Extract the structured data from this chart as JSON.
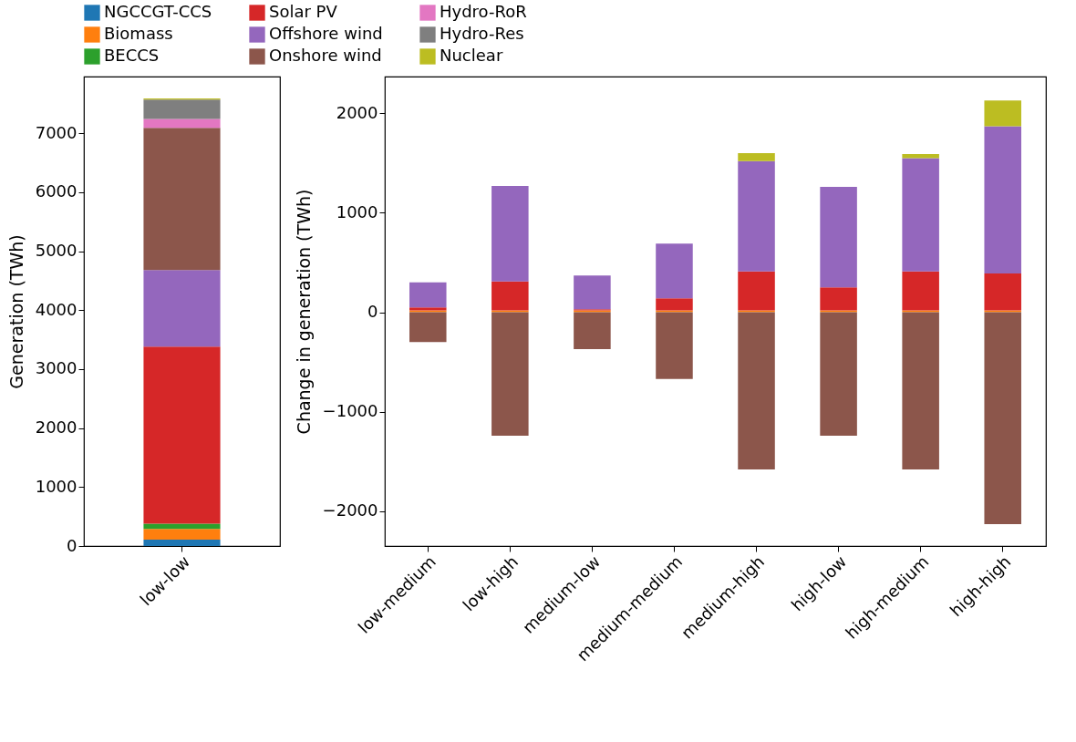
{
  "chart_data": [
    {
      "type": "bar",
      "stacked": true,
      "categories": [
        "low-low"
      ],
      "ylabel": "Generation (TWh)",
      "ylim": [
        0,
        7960
      ],
      "yticks": [
        0,
        1000,
        2000,
        3000,
        4000,
        5000,
        6000,
        7000
      ],
      "grid": false,
      "legend": "top",
      "series": [
        {
          "name": "NGCCGT-CCS",
          "color": "#1f77b4",
          "values": [
            110
          ]
        },
        {
          "name": "Biomass",
          "color": "#ff7f0e",
          "values": [
            180
          ]
        },
        {
          "name": "BECCS",
          "color": "#2ca02c",
          "values": [
            90
          ]
        },
        {
          "name": "Solar PV",
          "color": "#d62728",
          "values": [
            3000
          ]
        },
        {
          "name": "Offshore wind",
          "color": "#9467bd",
          "values": [
            1300
          ]
        },
        {
          "name": "Onshore wind",
          "color": "#8c564b",
          "values": [
            2410
          ]
        },
        {
          "name": "Hydro-RoR",
          "color": "#e377c2",
          "values": [
            150
          ]
        },
        {
          "name": "Hydro-Res",
          "color": "#7f7f7f",
          "values": [
            330
          ]
        },
        {
          "name": "Nuclear",
          "color": "#bcbd22",
          "values": [
            20
          ]
        }
      ]
    },
    {
      "type": "bar",
      "stacked": true,
      "categories": [
        "low-medium",
        "low-high",
        "medium-low",
        "medium-medium",
        "medium-high",
        "high-low",
        "high-medium",
        "high-high"
      ],
      "ylabel": "Change in generation (TWh)",
      "ylim": [
        -2350,
        2370
      ],
      "yticks": [
        -2000,
        -1000,
        0,
        1000,
        2000
      ],
      "grid": false,
      "series": [
        {
          "name": "NGCCGT-CCS",
          "color": "#1f77b4",
          "values": [
            null,
            null,
            null,
            null,
            null,
            null,
            null,
            null
          ]
        },
        {
          "name": "Biomass",
          "color": "#ff7f0e",
          "values": [
            20,
            20,
            20,
            20,
            20,
            20,
            20,
            20
          ]
        },
        {
          "name": "BECCS",
          "color": "#2ca02c",
          "values": [
            null,
            null,
            null,
            null,
            null,
            null,
            null,
            null
          ]
        },
        {
          "name": "Solar PV",
          "color": "#d62728",
          "values": [
            30,
            290,
            10,
            120,
            390,
            230,
            390,
            370
          ]
        },
        {
          "name": "Offshore wind",
          "color": "#9467bd",
          "values": [
            250,
            960,
            340,
            550,
            1110,
            1010,
            1140,
            1480
          ]
        },
        {
          "name": "Onshore wind",
          "color": "#8c564b",
          "values": [
            -300,
            -1240,
            -370,
            -670,
            -1580,
            -1240,
            -1580,
            -2130
          ]
        },
        {
          "name": "Hydro-RoR",
          "color": "#e377c2",
          "values": [
            null,
            null,
            null,
            null,
            null,
            null,
            null,
            null
          ]
        },
        {
          "name": "Hydro-Res",
          "color": "#7f7f7f",
          "values": [
            null,
            null,
            null,
            null,
            null,
            null,
            null,
            null
          ]
        },
        {
          "name": "Nuclear",
          "color": "#bcbd22",
          "values": [
            null,
            null,
            null,
            null,
            80,
            null,
            40,
            260
          ]
        }
      ]
    }
  ]
}
